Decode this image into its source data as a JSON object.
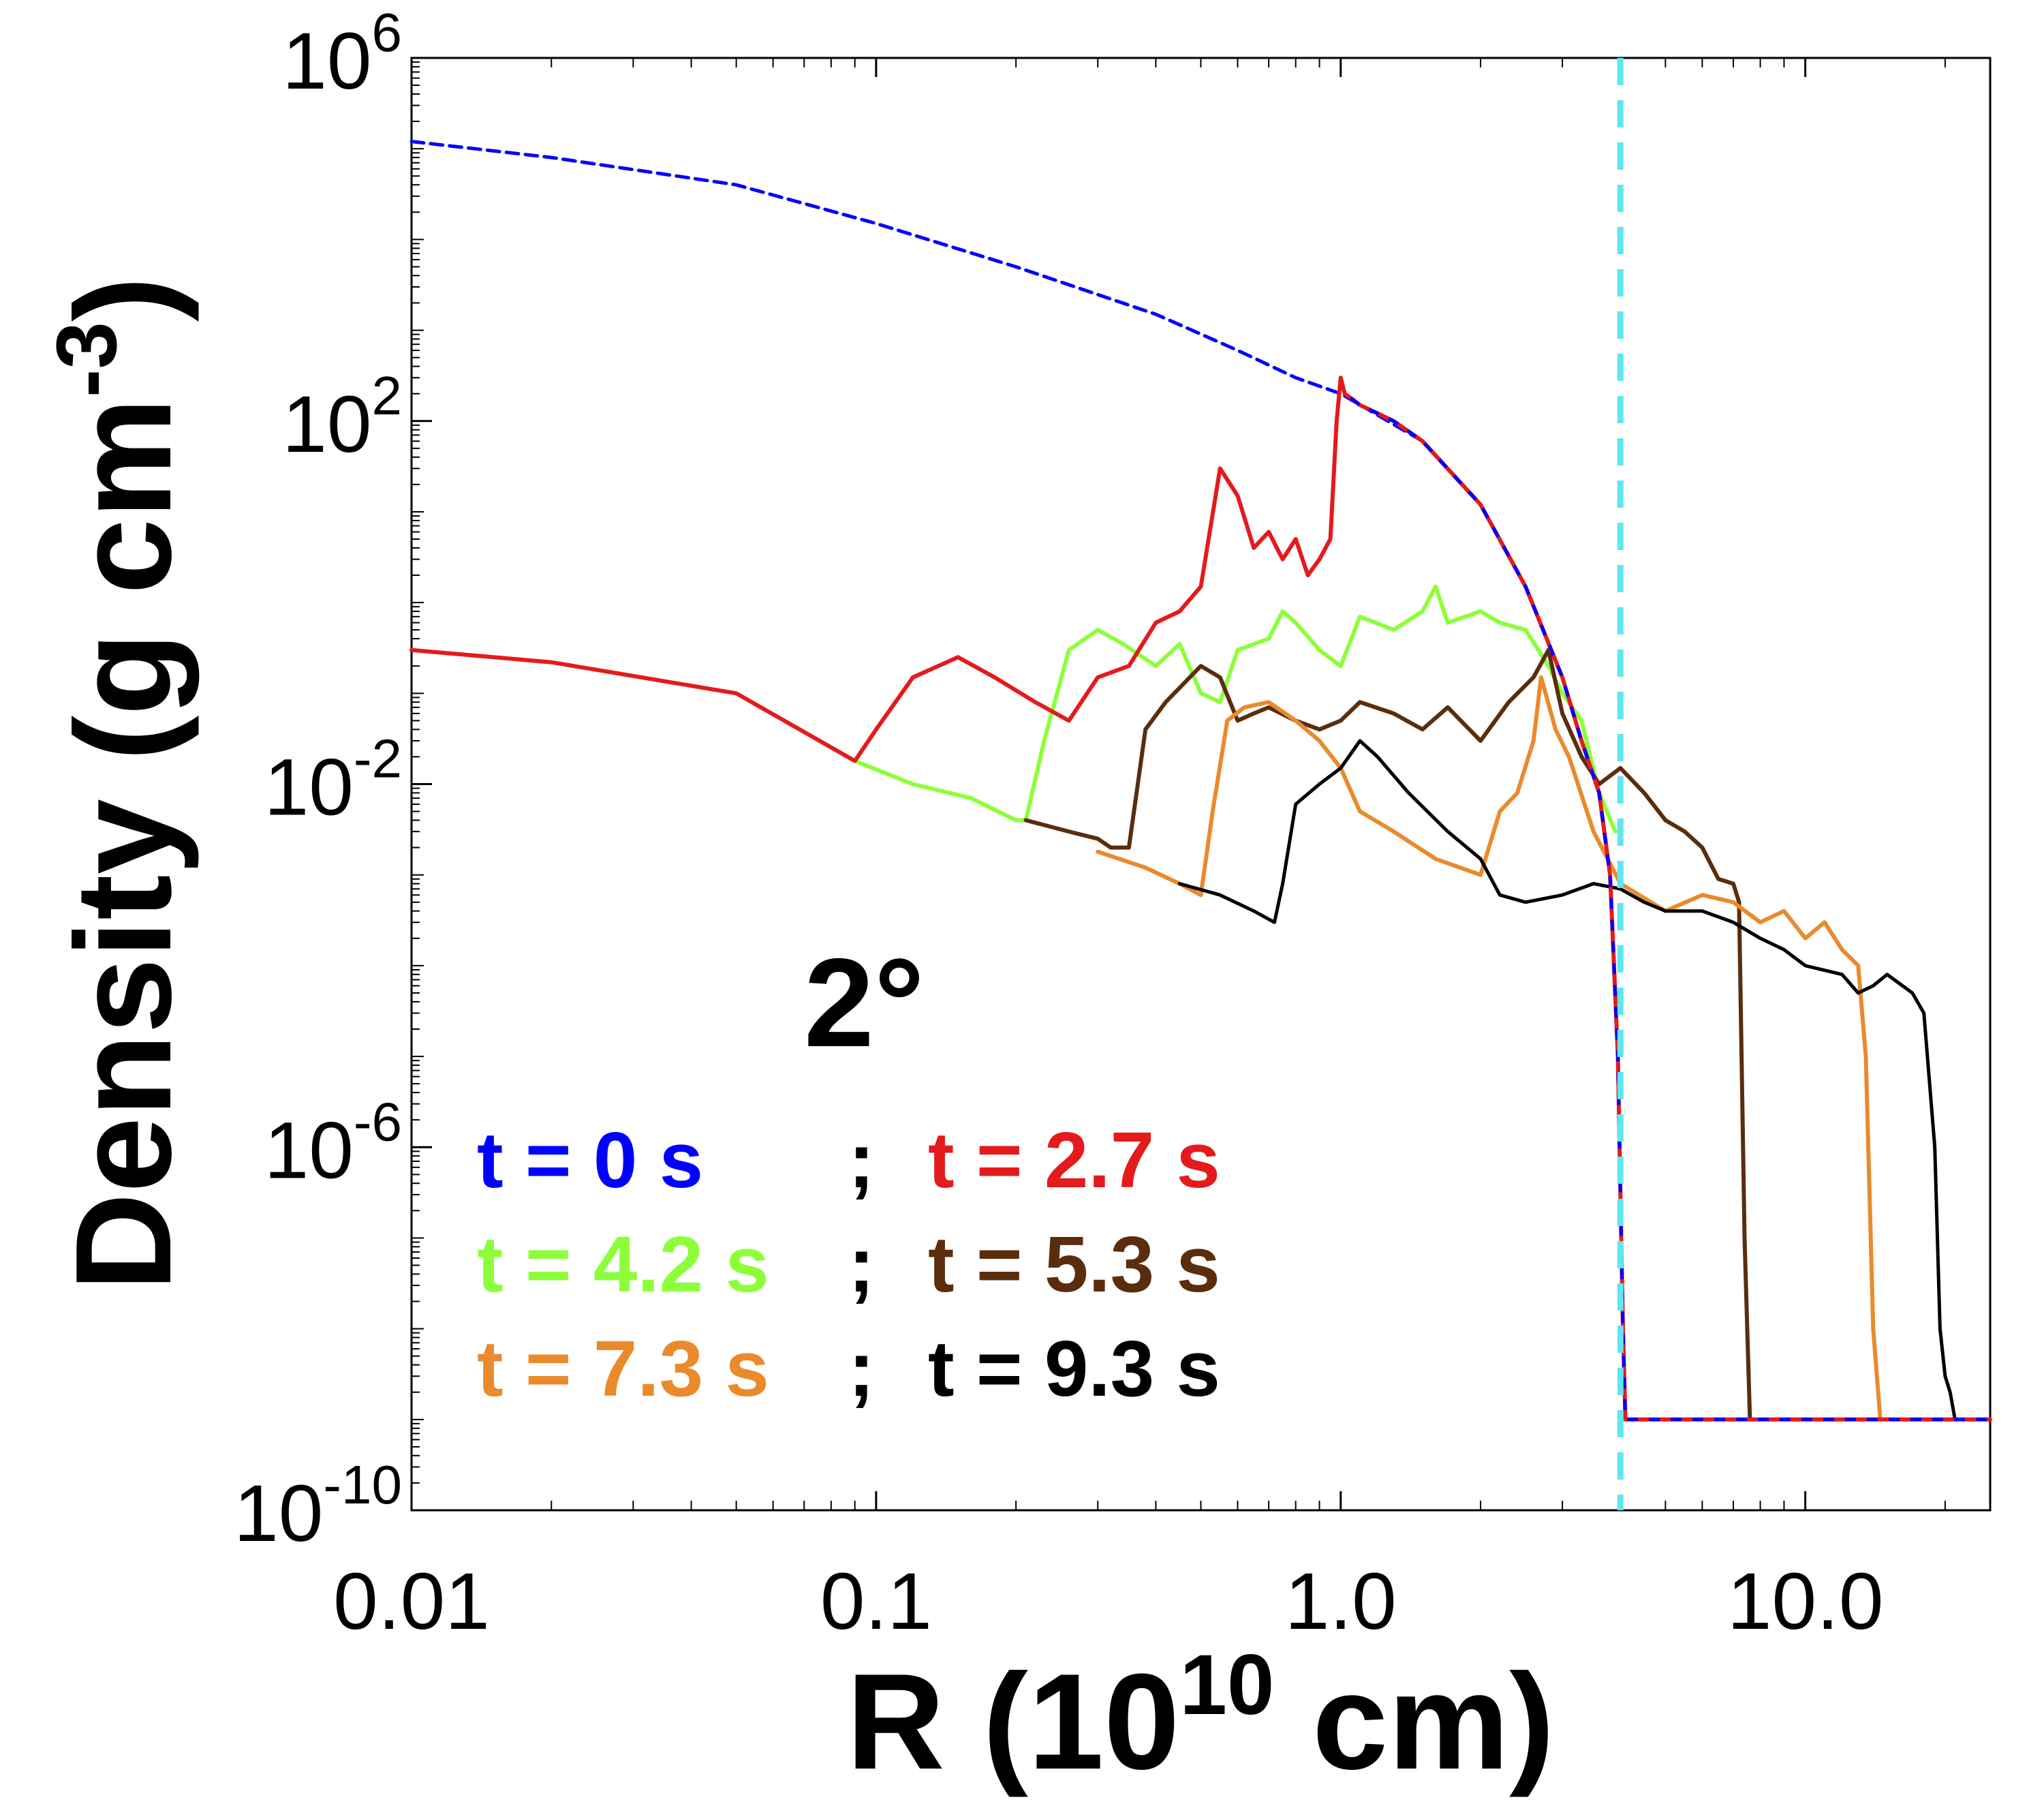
{
  "chart_data": {
    "type": "line",
    "xlabel": {
      "base": "R (10",
      "exp": "10",
      "tail": " cm)"
    },
    "ylabel": {
      "base": "Density (g cm",
      "exp": "-3",
      "tail": ")"
    },
    "xscale": "log",
    "yscale": "log",
    "xlim": [
      0.01,
      25
    ],
    "ylim": [
      1e-10,
      1000000.0
    ],
    "grid": false,
    "xticks": [
      {
        "value": 0.01,
        "label": "0.01"
      },
      {
        "value": 0.1,
        "label": "0.1"
      },
      {
        "value": 1,
        "label": "1.0"
      },
      {
        "value": 10,
        "label": "10.0"
      }
    ],
    "yticks": [
      {
        "value": 1e-10,
        "base": "10",
        "exp": "-10"
      },
      {
        "value": 1e-06,
        "base": "10",
        "exp": "-6"
      },
      {
        "value": 0.01,
        "base": "10",
        "exp": "-2"
      },
      {
        "value": 100.0,
        "base": "10",
        "exp": "2"
      },
      {
        "value": 1000000.0,
        "base": "10",
        "exp": "6"
      }
    ],
    "annotation": "2°",
    "vline": {
      "x": 4.0,
      "color": "#5fe6f0",
      "style": "dashed"
    },
    "legend_placement": "lower-left",
    "legend": [
      {
        "text": "t = 0 s",
        "color": "#0000ff"
      },
      {
        "text": "t = 2.7 s",
        "color": "#e41a1c"
      },
      {
        "text": "t = 4.2 s",
        "color": "#8cff3a"
      },
      {
        "text": "t = 5.3 s",
        "color": "#5a2d0c"
      },
      {
        "text": "t = 7.3 s",
        "color": "#ea8a2c"
      },
      {
        "text": "t = 9.3 s",
        "color": "#000000"
      }
    ],
    "legend_separator": ";",
    "series": [
      {
        "name": "t = 0 s",
        "color": "#0000ff",
        "dash": true,
        "width": 5,
        "x": [
          0.01,
          0.02,
          0.05,
          0.1,
          0.2,
          0.4,
          0.6,
          0.8,
          1.0,
          1.5,
          2.0,
          2.5,
          3.0,
          3.3,
          3.6,
          3.8,
          3.95,
          4.05,
          4.1,
          25
        ],
        "y": [
          120000,
          80000,
          40000,
          15000,
          5000,
          1500,
          600,
          300,
          200,
          60,
          12,
          1.5,
          0.15,
          0.03,
          0.008,
          0.001,
          1e-05,
          1e-08,
          1e-09,
          1e-09
        ]
      },
      {
        "name": "t = 2.7 s",
        "color": "#e41a1c",
        "dash": false,
        "width": 6,
        "x": [
          0.01,
          0.02,
          0.05,
          0.09,
          0.1,
          0.12,
          0.15,
          0.18,
          0.22,
          0.26,
          0.3,
          0.35,
          0.4,
          0.45,
          0.5,
          0.55,
          0.6,
          0.65,
          0.7,
          0.75,
          0.8,
          0.85,
          0.9,
          0.95,
          0.98,
          1.0,
          1.02,
          1.05,
          1.1,
          1.3,
          1.5,
          2.0,
          2.5,
          3.0,
          3.3,
          3.6,
          3.8,
          3.95,
          4.05,
          4.1,
          25
        ],
        "y": [
          0.3,
          0.22,
          0.1,
          0.018,
          0.04,
          0.15,
          0.25,
          0.15,
          0.08,
          0.05,
          0.15,
          0.2,
          0.6,
          0.8,
          1.5,
          30,
          15,
          4,
          6,
          3,
          5,
          2,
          3,
          5,
          100,
          300,
          200,
          180,
          150,
          100,
          60,
          12,
          1.5,
          0.15,
          0.03,
          0.008,
          0.001,
          1e-05,
          1e-08,
          1e-09,
          1e-09
        ]
      },
      {
        "name": "t = 4.2 s",
        "color": "#8cff3a",
        "dash": false,
        "width": 6,
        "x": [
          0.09,
          0.12,
          0.16,
          0.2,
          0.21,
          0.23,
          0.26,
          0.3,
          0.34,
          0.4,
          0.45,
          0.5,
          0.55,
          0.6,
          0.7,
          0.75,
          0.8,
          0.9,
          1.0,
          1.1,
          1.3,
          1.5,
          1.6,
          1.7,
          2.0,
          2.2,
          2.5,
          2.8,
          3.0,
          3.3,
          3.6,
          3.9
        ],
        "y": [
          0.018,
          0.01,
          0.007,
          0.004,
          0.004,
          0.03,
          0.3,
          0.5,
          0.35,
          0.2,
          0.35,
          0.1,
          0.08,
          0.3,
          0.4,
          0.8,
          0.6,
          0.3,
          0.2,
          0.7,
          0.5,
          0.8,
          1.5,
          0.6,
          0.8,
          0.6,
          0.5,
          0.2,
          0.1,
          0.05,
          0.008,
          0.003
        ]
      },
      {
        "name": "t = 5.3 s",
        "color": "#5a2d0c",
        "dash": false,
        "width": 6,
        "x": [
          0.21,
          0.26,
          0.3,
          0.32,
          0.35,
          0.38,
          0.42,
          0.5,
          0.55,
          0.6,
          0.65,
          0.7,
          0.8,
          0.9,
          1.0,
          1.1,
          1.3,
          1.5,
          1.7,
          2.0,
          2.3,
          2.6,
          2.8,
          3.0,
          3.3,
          3.6,
          4.0,
          4.5,
          5.0,
          5.5,
          6.0,
          6.5,
          7.0,
          7.2,
          7.4,
          7.6
        ],
        "y": [
          0.004,
          0.003,
          0.0025,
          0.002,
          0.002,
          0.04,
          0.08,
          0.2,
          0.15,
          0.05,
          0.06,
          0.07,
          0.05,
          0.04,
          0.05,
          0.08,
          0.06,
          0.04,
          0.07,
          0.03,
          0.08,
          0.15,
          0.3,
          0.06,
          0.02,
          0.01,
          0.015,
          0.008,
          0.004,
          0.003,
          0.002,
          0.0009,
          0.0008,
          0.0005,
          1e-07,
          1e-09
        ]
      },
      {
        "name": "t = 7.3 s",
        "color": "#ea8a2c",
        "dash": false,
        "width": 6,
        "x": [
          0.3,
          0.38,
          0.45,
          0.5,
          0.53,
          0.57,
          0.62,
          0.7,
          0.8,
          0.9,
          1.0,
          1.1,
          1.3,
          1.6,
          2.0,
          2.2,
          2.4,
          2.6,
          2.7,
          2.9,
          3.1,
          3.5,
          4.0,
          5.0,
          6.0,
          7.0,
          8.0,
          9.0,
          10.0,
          11.0,
          12.0,
          13.0,
          13.5,
          14.0,
          14.5
        ],
        "y": [
          0.0018,
          0.0012,
          0.0008,
          0.0006,
          0.005,
          0.05,
          0.07,
          0.08,
          0.05,
          0.03,
          0.015,
          0.005,
          0.003,
          0.0015,
          0.001,
          0.005,
          0.008,
          0.03,
          0.15,
          0.04,
          0.02,
          0.003,
          0.0008,
          0.0004,
          0.0006,
          0.0005,
          0.0003,
          0.0004,
          0.0002,
          0.0003,
          0.00015,
          0.0001,
          1e-05,
          1e-08,
          1e-09
        ]
      },
      {
        "name": "t = 9.3 s",
        "color": "#000000",
        "dash": false,
        "width": 5,
        "x": [
          0.45,
          0.55,
          0.65,
          0.72,
          0.75,
          0.8,
          0.9,
          1.0,
          1.1,
          1.2,
          1.4,
          1.7,
          2.0,
          2.2,
          2.5,
          3.0,
          3.5,
          4.0,
          4.5,
          5.0,
          6.0,
          7.0,
          8.0,
          9.0,
          10.0,
          12.0,
          13.0,
          14.0,
          15.0,
          17.0,
          18.0,
          19.0,
          19.5,
          20.0,
          20.5,
          21.0
        ],
        "y": [
          0.0008,
          0.0006,
          0.0004,
          0.0003,
          0.0008,
          0.006,
          0.01,
          0.015,
          0.03,
          0.02,
          0.008,
          0.003,
          0.0015,
          0.0006,
          0.0005,
          0.0006,
          0.0008,
          0.0007,
          0.0005,
          0.0004,
          0.0004,
          0.0003,
          0.0002,
          0.00015,
          0.0001,
          8e-05,
          5e-05,
          6e-05,
          8e-05,
          5e-05,
          3e-05,
          1e-06,
          1e-08,
          3e-09,
          2e-09,
          1e-09
        ]
      }
    ]
  }
}
